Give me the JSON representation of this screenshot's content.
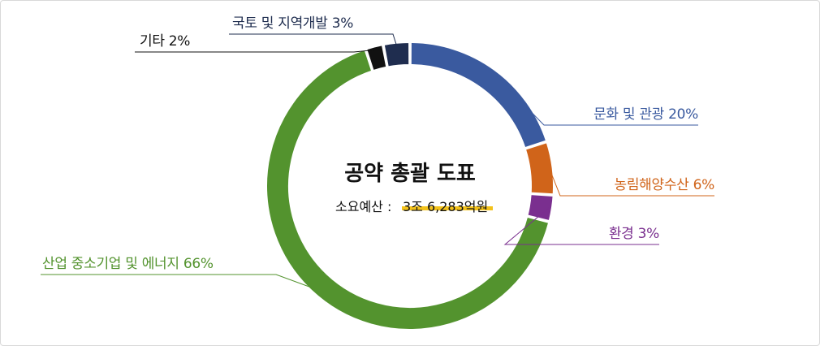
{
  "chart_data": {
    "type": "pie",
    "title": "공약 총괄 도표",
    "subtitle_label": "소요예산 : ",
    "subtitle_value": "3조 6,283억원",
    "legend": "labels-outside",
    "slices": [
      {
        "label": "문화 및 관광 20%",
        "value": 20,
        "color": "#3a5a9f"
      },
      {
        "label": "농림해양수산  6%",
        "value": 6,
        "color": "#d0641a"
      },
      {
        "label": "환경 3%",
        "value": 3,
        "color": "#7a2f8f"
      },
      {
        "label": "산업 중소기업 및 에너지 66%",
        "value": 66,
        "color": "#53932e"
      },
      {
        "label": "기타 2%",
        "value": 2,
        "color": "#111111"
      },
      {
        "label": "국토 및 지역개발 3%",
        "value": 3,
        "color": "#1f2d4f"
      }
    ]
  }
}
